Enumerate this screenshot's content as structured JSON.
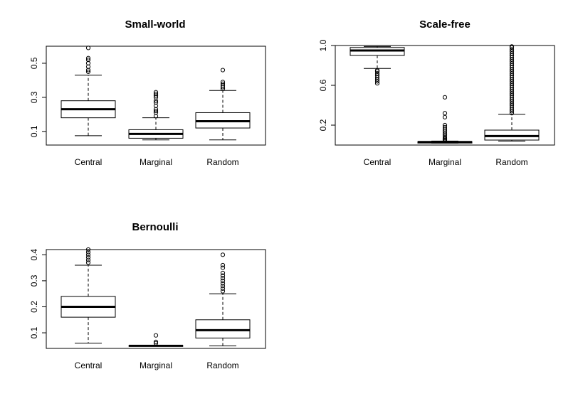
{
  "chart_data": [
    {
      "type": "box",
      "title": "Small-world",
      "categories": [
        "Central",
        "Marginal",
        "Random"
      ],
      "ylim": [
        0.02,
        0.6
      ],
      "yticks": [
        0.1,
        0.3,
        0.5
      ],
      "ytick_labels": [
        "0.1",
        "0.3",
        "0.5"
      ],
      "boxes": [
        {
          "name": "Central",
          "whisker_low": 0.075,
          "q1": 0.18,
          "median": 0.23,
          "q3": 0.28,
          "whisker_high": 0.43,
          "outliers": [
            0.45,
            0.46,
            0.48,
            0.5,
            0.52,
            0.53,
            0.59
          ]
        },
        {
          "name": "Marginal",
          "whisker_low": 0.05,
          "q1": 0.06,
          "median": 0.085,
          "q3": 0.11,
          "whisker_high": 0.18,
          "outliers": [
            0.19,
            0.21,
            0.22,
            0.23,
            0.25,
            0.27,
            0.28,
            0.3,
            0.31,
            0.32,
            0.33
          ]
        },
        {
          "name": "Random",
          "whisker_low": 0.05,
          "q1": 0.12,
          "median": 0.16,
          "q3": 0.21,
          "whisker_high": 0.34,
          "outliers": [
            0.35,
            0.36,
            0.37,
            0.38,
            0.39,
            0.46
          ]
        }
      ]
    },
    {
      "type": "box",
      "title": "Scale-free",
      "categories": [
        "Central",
        "Marginal",
        "Random"
      ],
      "ylim": [
        0.0,
        1.0
      ],
      "yticks": [
        0.2,
        0.6,
        1.0
      ],
      "ytick_labels": [
        "0.2",
        "0.6",
        "1.0"
      ],
      "boxes": [
        {
          "name": "Central",
          "whisker_low": 0.77,
          "q1": 0.9,
          "median": 0.95,
          "q3": 0.98,
          "whisker_high": 0.99,
          "outliers": [
            0.62,
            0.64,
            0.66,
            0.68,
            0.7,
            0.72,
            0.74,
            0.75
          ]
        },
        {
          "name": "Marginal",
          "whisker_low": 0.02,
          "q1": 0.02,
          "median": 0.03,
          "q3": 0.035,
          "whisker_high": 0.04,
          "outliers": [
            0.05,
            0.06,
            0.07,
            0.08,
            0.1,
            0.12,
            0.14,
            0.16,
            0.18,
            0.2,
            0.28,
            0.32,
            0.48
          ]
        },
        {
          "name": "Random",
          "whisker_low": 0.04,
          "q1": 0.05,
          "median": 0.09,
          "q3": 0.15,
          "whisker_high": 0.31,
          "outliers": [
            0.32,
            0.34,
            0.36,
            0.38,
            0.4,
            0.42,
            0.44,
            0.46,
            0.48,
            0.5,
            0.52,
            0.54,
            0.56,
            0.58,
            0.6,
            0.62,
            0.64,
            0.66,
            0.68,
            0.7,
            0.72,
            0.74,
            0.76,
            0.78,
            0.8,
            0.82,
            0.84,
            0.86,
            0.88,
            0.9,
            0.92,
            0.94,
            0.96,
            0.98,
            0.99
          ]
        }
      ]
    },
    {
      "type": "box",
      "title": "Bernoulli",
      "categories": [
        "Central",
        "Marginal",
        "Random"
      ],
      "ylim": [
        0.04,
        0.42
      ],
      "yticks": [
        0.1,
        0.2,
        0.3,
        0.4
      ],
      "ytick_labels": [
        "0.1",
        "0.2",
        "0.3",
        "0.4"
      ],
      "boxes": [
        {
          "name": "Central",
          "whisker_low": 0.06,
          "q1": 0.16,
          "median": 0.2,
          "q3": 0.24,
          "whisker_high": 0.36,
          "outliers": [
            0.37,
            0.38,
            0.39,
            0.4,
            0.41,
            0.42
          ]
        },
        {
          "name": "Marginal",
          "whisker_low": 0.05,
          "q1": 0.05,
          "median": 0.05,
          "q3": 0.05,
          "whisker_high": 0.05,
          "outliers": [
            0.06,
            0.065,
            0.09
          ]
        },
        {
          "name": "Random",
          "whisker_low": 0.05,
          "q1": 0.08,
          "median": 0.11,
          "q3": 0.15,
          "whisker_high": 0.25,
          "outliers": [
            0.26,
            0.27,
            0.28,
            0.29,
            0.3,
            0.31,
            0.32,
            0.33,
            0.35,
            0.36,
            0.4
          ]
        }
      ]
    }
  ]
}
